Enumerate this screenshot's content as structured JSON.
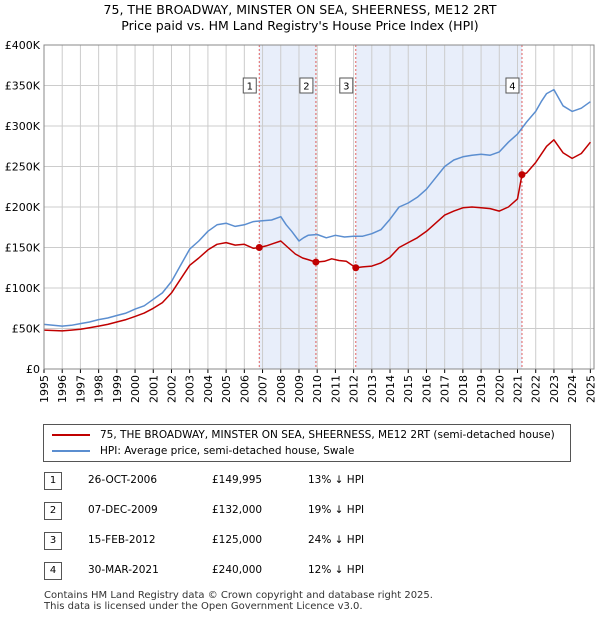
{
  "title_line1": "75, THE BROADWAY, MINSTER ON SEA, SHEERNESS, ME12 2RT",
  "title_line2": "Price paid vs. HM Land Registry's House Price Index (HPI)",
  "chart_data": {
    "type": "line",
    "xlim": [
      1995,
      2025.2
    ],
    "ylim": [
      0,
      400000
    ],
    "ytick_values": [
      0,
      50000,
      100000,
      150000,
      200000,
      250000,
      300000,
      350000,
      400000
    ],
    "ytick_labels": [
      "£0",
      "£50K",
      "£100K",
      "£150K",
      "£200K",
      "£250K",
      "£300K",
      "£350K",
      "£400K"
    ],
    "xtick_labels": [
      "1995",
      "1996",
      "1997",
      "1998",
      "1999",
      "2000",
      "2001",
      "2002",
      "2003",
      "2004",
      "2005",
      "2006",
      "2007",
      "2008",
      "2009",
      "2010",
      "2011",
      "2012",
      "2013",
      "2014",
      "2015",
      "2016",
      "2017",
      "2018",
      "2019",
      "2020",
      "2021",
      "2022",
      "2023",
      "2024",
      "2025"
    ],
    "series": [
      {
        "name": "HPI: Average price, semi-detached house, Swale",
        "color": "#5b8ed0",
        "x": [
          1995.0,
          1995.5,
          1996.0,
          1996.5,
          1997.0,
          1997.5,
          1998.0,
          1998.5,
          1999.0,
          1999.5,
          2000.0,
          2000.5,
          2001.0,
          2001.5,
          2002.0,
          2002.5,
          2003.0,
          2003.5,
          2004.0,
          2004.5,
          2005.0,
          2005.5,
          2006.0,
          2006.5,
          2007.0,
          2007.5,
          2008.0,
          2008.3,
          2008.6,
          2009.0,
          2009.25,
          2009.5,
          2010.0,
          2010.5,
          2011.0,
          2011.5,
          2012.0,
          2012.5,
          2013.0,
          2013.5,
          2014.0,
          2014.5,
          2015.0,
          2015.5,
          2016.0,
          2016.5,
          2017.0,
          2017.5,
          2018.0,
          2018.5,
          2019.0,
          2019.5,
          2020.0,
          2020.5,
          2021.0,
          2021.5,
          2022.0,
          2022.3,
          2022.6,
          2023.0,
          2023.5,
          2024.0,
          2024.5,
          2025.0
        ],
        "values": [
          55000,
          54000,
          53000,
          54000,
          56000,
          58000,
          61000,
          63000,
          66000,
          69000,
          74000,
          78000,
          86000,
          94000,
          108000,
          128000,
          148000,
          158000,
          170000,
          178000,
          180000,
          176000,
          178000,
          182000,
          183000,
          184000,
          188000,
          178000,
          170000,
          158000,
          162000,
          165000,
          166000,
          162000,
          165000,
          163000,
          164000,
          164000,
          167000,
          172000,
          185000,
          200000,
          205000,
          212000,
          222000,
          236000,
          250000,
          258000,
          262000,
          264000,
          265000,
          264000,
          268000,
          280000,
          290000,
          305000,
          318000,
          330000,
          340000,
          345000,
          325000,
          318000,
          322000,
          330000
        ]
      },
      {
        "name": "75, THE BROADWAY, MINSTER ON SEA, SHEERNESS, ME12 2RT (semi-detached house)",
        "color": "#c00000",
        "x": [
          1995.0,
          1995.5,
          1996.0,
          1996.5,
          1997.0,
          1997.5,
          1998.0,
          1998.5,
          1999.0,
          1999.5,
          2000.0,
          2000.5,
          2001.0,
          2001.5,
          2002.0,
          2002.5,
          2003.0,
          2003.5,
          2004.0,
          2004.5,
          2005.0,
          2005.5,
          2006.0,
          2006.5,
          2006.82,
          2007.2,
          2007.6,
          2008.0,
          2008.4,
          2008.8,
          2009.2,
          2009.5,
          2009.93,
          2010.4,
          2010.8,
          2011.2,
          2011.6,
          2012.12,
          2012.5,
          2013.0,
          2013.5,
          2014.0,
          2014.5,
          2015.0,
          2015.5,
          2016.0,
          2016.5,
          2017.0,
          2017.5,
          2018.0,
          2018.5,
          2019.0,
          2019.5,
          2020.0,
          2020.5,
          2021.0,
          2021.245,
          2021.5,
          2022.0,
          2022.3,
          2022.6,
          2023.0,
          2023.5,
          2024.0,
          2024.5,
          2025.0
        ],
        "values": [
          48000,
          47500,
          47000,
          48000,
          49000,
          51000,
          53000,
          55000,
          58000,
          61000,
          65000,
          69000,
          75000,
          82000,
          94000,
          111000,
          128000,
          137000,
          147000,
          154000,
          156000,
          153000,
          154000,
          149000,
          149995,
          152000,
          155000,
          158000,
          150000,
          142000,
          137000,
          135000,
          132000,
          133000,
          136000,
          134000,
          133000,
          125000,
          126000,
          127000,
          131000,
          138000,
          150000,
          156000,
          162000,
          170000,
          180000,
          190000,
          195000,
          199000,
          200000,
          199000,
          198000,
          195000,
          200000,
          210000,
          240000,
          242000,
          255000,
          265000,
          275000,
          283000,
          267000,
          260000,
          266000,
          280000
        ]
      }
    ],
    "purchases": [
      {
        "label": "1",
        "x": 2006.82,
        "price": 149995
      },
      {
        "label": "2",
        "x": 2009.93,
        "price": 132000
      },
      {
        "label": "3",
        "x": 2012.12,
        "price": 125000
      },
      {
        "label": "4",
        "x": 2021.245,
        "price": 240000
      }
    ]
  },
  "legend": {
    "property_label": "75, THE BROADWAY, MINSTER ON SEA, SHEERNESS, ME12 2RT (semi-detached house)",
    "hpi_label": "HPI: Average price, semi-detached house, Swale"
  },
  "transactions": [
    {
      "num": "1",
      "date": "26-OCT-2006",
      "price": "£149,995",
      "hpi": "13% ↓ HPI"
    },
    {
      "num": "2",
      "date": "07-DEC-2009",
      "price": "£132,000",
      "hpi": "19% ↓ HPI"
    },
    {
      "num": "3",
      "date": "15-FEB-2012",
      "price": "£125,000",
      "hpi": "24% ↓ HPI"
    },
    {
      "num": "4",
      "date": "30-MAR-2021",
      "price": "£240,000",
      "hpi": "12% ↓ HPI"
    }
  ],
  "footer_line1": "Contains HM Land Registry data © Crown copyright and database right 2025.",
  "footer_line2": "This data is licensed under the Open Government Licence v3.0."
}
